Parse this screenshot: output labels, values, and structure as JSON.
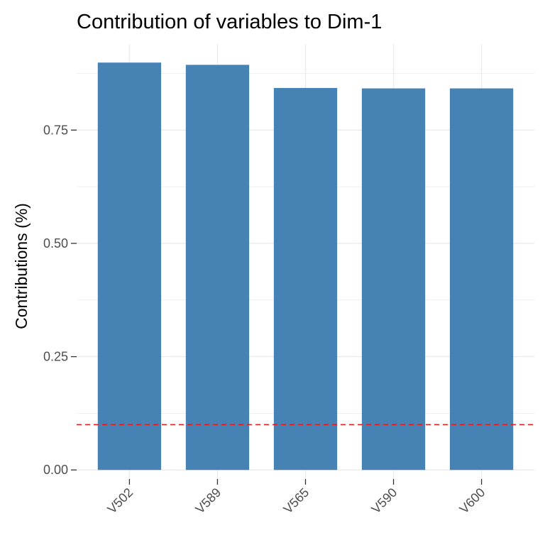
{
  "chart_data": {
    "type": "bar",
    "title": "Contribution of variables to Dim-1",
    "xlabel": "",
    "ylabel": "Contributions (%)",
    "categories": [
      "V502",
      "V589",
      "V565",
      "V590",
      "V600"
    ],
    "values": [
      0.899,
      0.894,
      0.843,
      0.842,
      0.842
    ],
    "ylim": [
      -0.02,
      0.94
    ],
    "yticks": [
      0.0,
      0.25,
      0.5,
      0.75
    ],
    "ytick_labels": [
      "0.00",
      "0.25",
      "0.50",
      "0.75"
    ],
    "reference_line": {
      "value": 0.1,
      "style": "dashed",
      "color": "#e41a1c"
    },
    "bar_color": "#4682b4",
    "grid": true,
    "grid_color": "#ebebeb",
    "legend": "none"
  }
}
